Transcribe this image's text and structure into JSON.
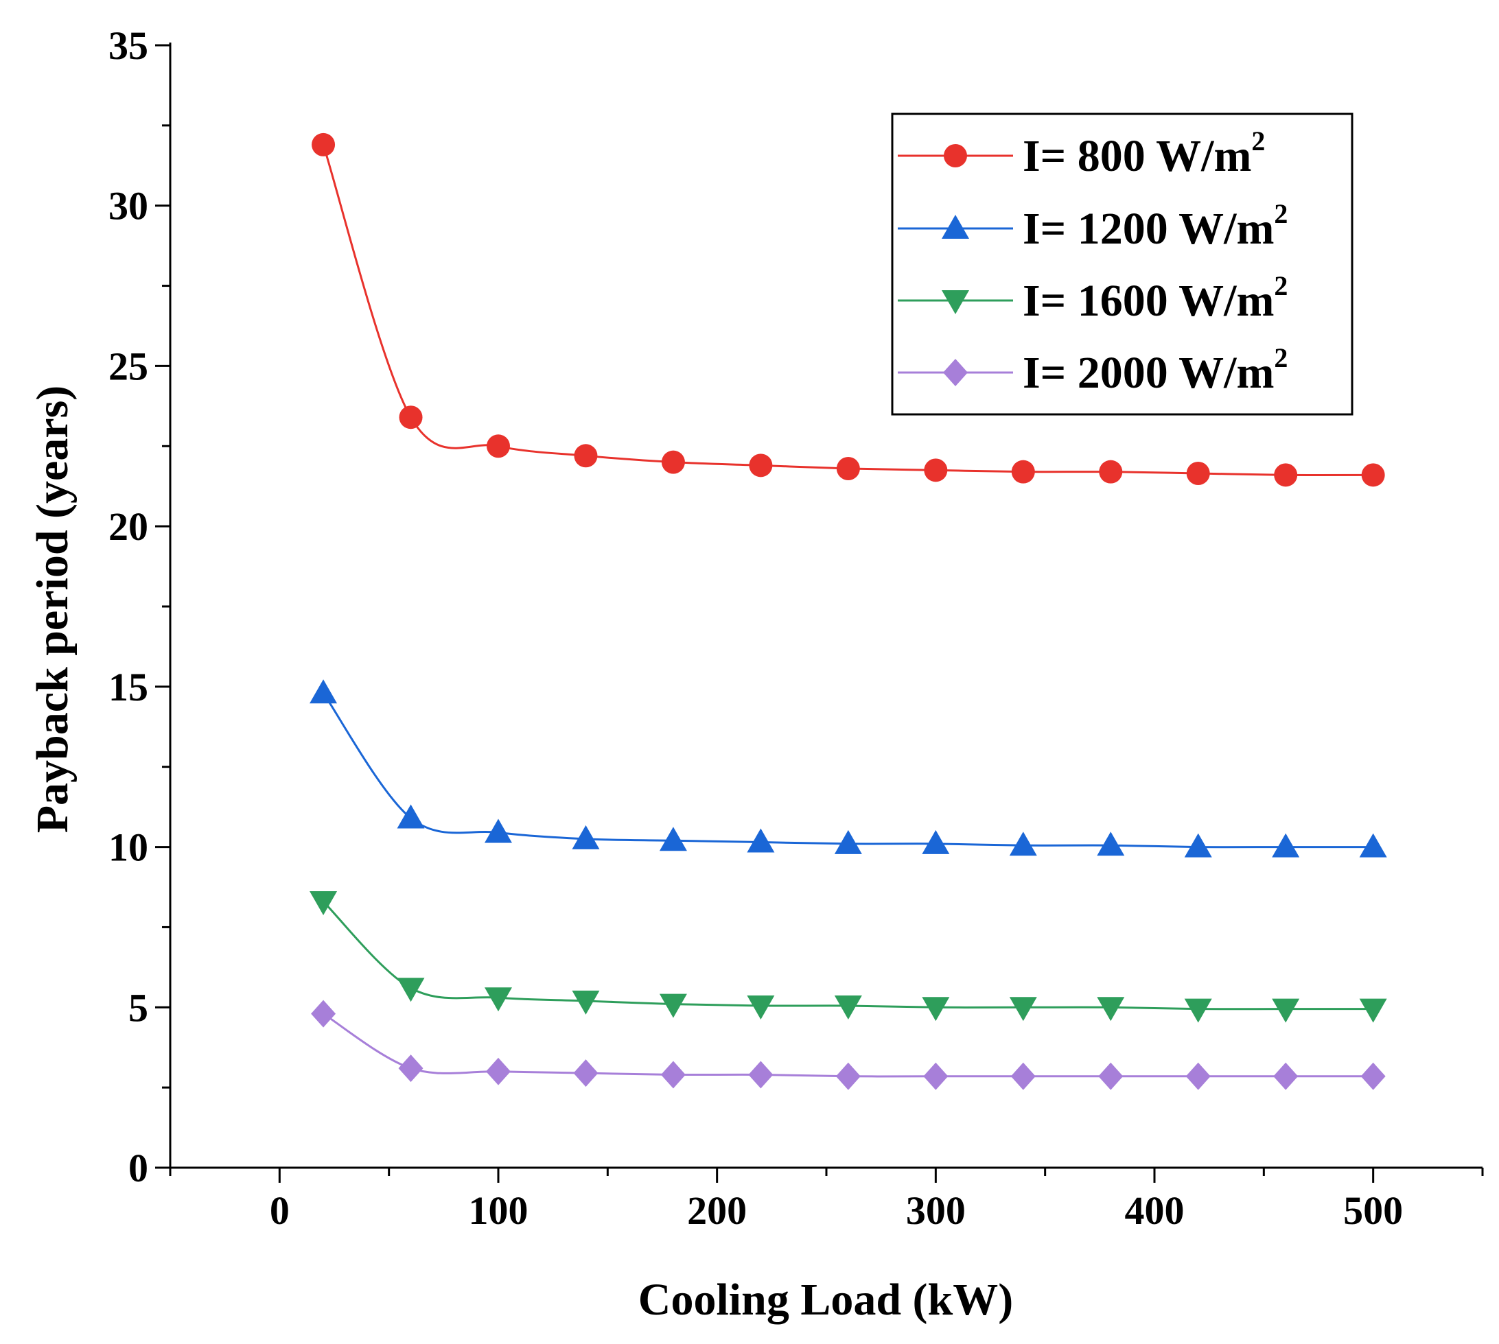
{
  "chart_data": {
    "type": "line",
    "title": "",
    "xlabel": "Cooling Load (kW)",
    "ylabel": "Payback period (years)",
    "xlim": [
      -50,
      550
    ],
    "ylim": [
      0,
      35
    ],
    "xticks": [
      0,
      100,
      200,
      300,
      400,
      500
    ],
    "yticks": [
      0,
      5,
      10,
      15,
      20,
      25,
      30,
      35
    ],
    "legend_position": "top-right",
    "x": [
      20,
      60,
      100,
      140,
      180,
      220,
      260,
      300,
      340,
      380,
      420,
      460,
      500
    ],
    "series": [
      {
        "name_prefix": "I= 800 W/m",
        "name_sup": "2",
        "color": "#e8322c",
        "marker": "circle",
        "values": [
          31.9,
          23.4,
          22.5,
          22.2,
          22.0,
          21.9,
          21.8,
          21.75,
          21.7,
          21.7,
          21.65,
          21.6,
          21.6
        ]
      },
      {
        "name_prefix": "I= 1200 W/m",
        "name_sup": "2",
        "color": "#1a66d6",
        "marker": "triangle-up",
        "values": [
          14.8,
          10.9,
          10.45,
          10.25,
          10.2,
          10.15,
          10.1,
          10.1,
          10.05,
          10.05,
          10.0,
          10.0,
          10.0
        ]
      },
      {
        "name_prefix": "I= 1600 W/m",
        "name_sup": "2",
        "color": "#2e9e5b",
        "marker": "triangle-down",
        "values": [
          8.3,
          5.6,
          5.3,
          5.2,
          5.1,
          5.05,
          5.05,
          5.0,
          5.0,
          5.0,
          4.95,
          4.95,
          4.95
        ]
      },
      {
        "name_prefix": "I= 2000 W/m",
        "name_sup": "2",
        "color": "#a77fd9",
        "marker": "diamond",
        "values": [
          4.8,
          3.1,
          3.0,
          2.95,
          2.9,
          2.9,
          2.85,
          2.85,
          2.85,
          2.85,
          2.85,
          2.85,
          2.85
        ]
      }
    ]
  }
}
